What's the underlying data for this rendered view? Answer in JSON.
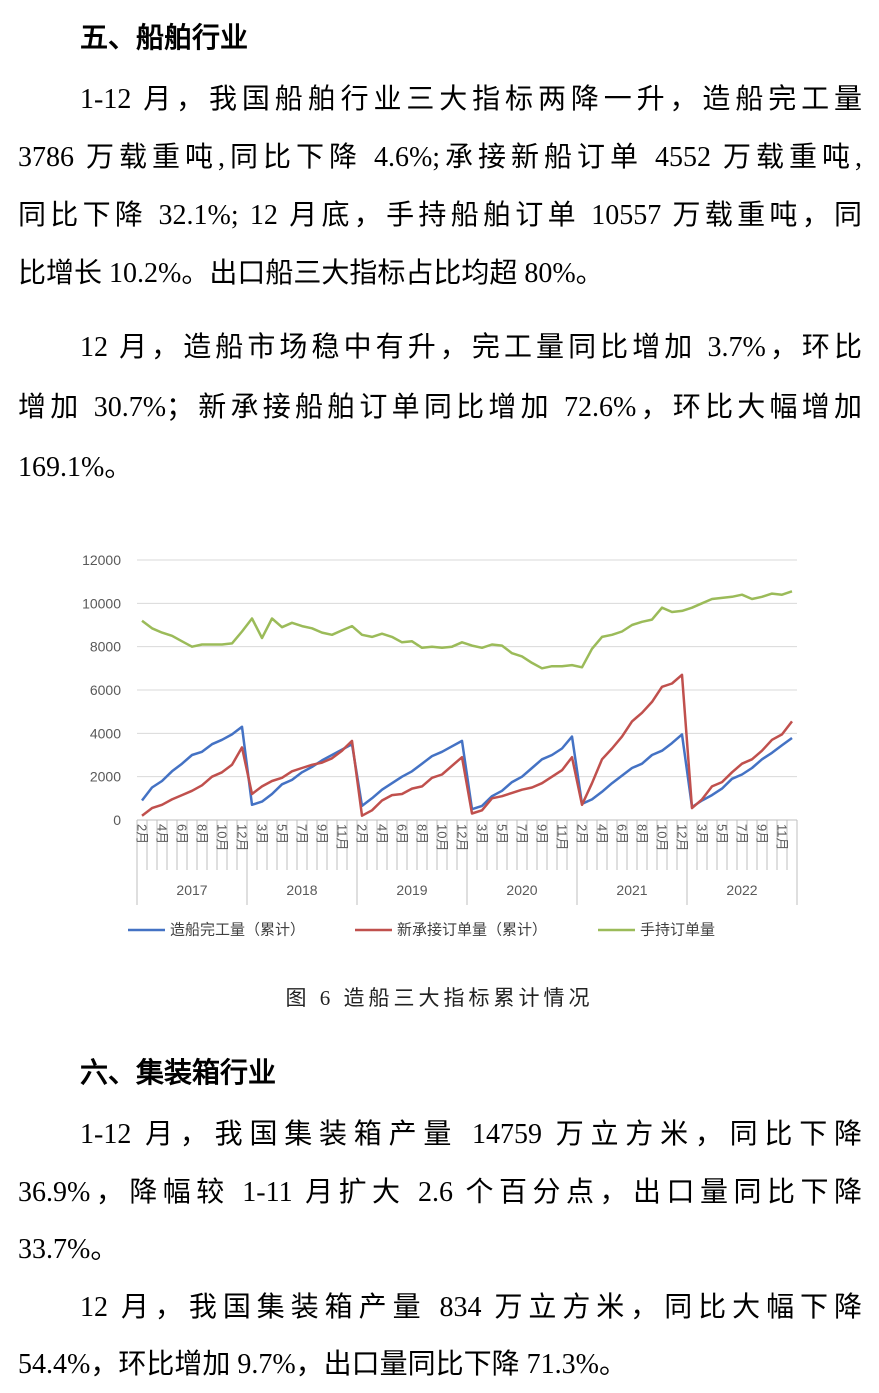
{
  "shipbuilding": {
    "heading": "五、船舶行业",
    "paragraphs": [
      [
        "1-12 月，我国船舶行业三大指标两降一升，造船完工量",
        "3786 万载重吨,同比下降 4.6%;承接新船订单 4552 万载重吨,",
        "同比下降 32.1%; 12 月底，手持船舶订单 10557 万载重吨，同",
        "比增长 10.2%。出口船三大指标占比均超 80%。"
      ],
      [
        "12 月，造船市场稳中有升，完工量同比增加 3.7%，环比",
        "增加 30.7%；新承接船舶订单同比增加 72.6%，环比大幅增加",
        "169.1%。"
      ]
    ],
    "figure_caption": "图 6 造船三大指标累计情况"
  },
  "containers": {
    "heading": "六、集装箱行业",
    "paragraphs": [
      [
        "1-12 月，我国集装箱产量 14759 万立方米，同比下降",
        "36.9%，降幅较 1-11 月扩大 2.6 个百分点，出口量同比下降",
        "33.7%。"
      ],
      [
        "12 月，我国集装箱产量 834 万立方米，同比大幅下降",
        "54.4%，环比增加 9.7%，出口量同比下降 71.3%。"
      ]
    ]
  },
  "chart_data": {
    "type": "line",
    "ylim": [
      0,
      12000
    ],
    "ytick_labels": [
      "12000",
      "10000",
      "8000",
      "6000",
      "4000",
      "2000",
      "0"
    ],
    "grid": true,
    "legend": "bottom",
    "x_groups": [
      {
        "label": "2017",
        "ticks": [
          "2月",
          "4月",
          "6月",
          "8月",
          "10月",
          "12月"
        ]
      },
      {
        "label": "2018",
        "ticks": [
          "3月",
          "5月",
          "7月",
          "9月",
          "11月"
        ]
      },
      {
        "label": "2019",
        "ticks": [
          "2月",
          "4月",
          "6月",
          "8月",
          "10月",
          "12月"
        ]
      },
      {
        "label": "2020",
        "ticks": [
          "3月",
          "5月",
          "7月",
          "9月",
          "11月"
        ]
      },
      {
        "label": "2021",
        "ticks": [
          "2月",
          "4月",
          "6月",
          "8月",
          "10月",
          "12月"
        ]
      },
      {
        "label": "2022",
        "ticks": [
          "3月",
          "5月",
          "7月",
          "9月",
          "11月"
        ]
      }
    ],
    "series": [
      {
        "name": "造船完工量（累计）",
        "color": "#4472c4",
        "values": [
          [
            900,
            1500,
            1800,
            2250,
            2600,
            3000,
            3150,
            3500,
            3700,
            3950,
            4300
          ],
          [
            700,
            850,
            1200,
            1650,
            1850,
            2200,
            2450,
            2750,
            3000,
            3250,
            3500
          ],
          [
            650,
            1000,
            1400,
            1700,
            2000,
            2250,
            2600,
            2950,
            3150,
            3400,
            3650
          ],
          [
            500,
            650,
            1100,
            1350,
            1750,
            2000,
            2400,
            2800,
            3000,
            3300,
            3850
          ],
          [
            750,
            950,
            1300,
            1700,
            2050,
            2400,
            2600,
            3000,
            3200,
            3550,
            3950
          ],
          [
            600,
            900,
            1150,
            1450,
            1900,
            2100,
            2400,
            2800,
            3100,
            3450,
            3786
          ]
        ]
      },
      {
        "name": "新承接订单量（累计）",
        "color": "#c0504d",
        "values": [
          [
            200,
            550,
            700,
            950,
            1150,
            1350,
            1600,
            2000,
            2200,
            2550,
            3350
          ],
          [
            1200,
            1550,
            1800,
            1950,
            2250,
            2400,
            2550,
            2650,
            2850,
            3200,
            3650
          ],
          [
            200,
            450,
            900,
            1150,
            1200,
            1450,
            1550,
            1950,
            2100,
            2500,
            2900
          ],
          [
            300,
            450,
            1000,
            1100,
            1250,
            1400,
            1500,
            1700,
            2000,
            2300,
            2900
          ],
          [
            700,
            1700,
            2800,
            3300,
            3850,
            4550,
            4950,
            5450,
            6150,
            6300,
            6700
          ],
          [
            550,
            950,
            1550,
            1750,
            2200,
            2600,
            2800,
            3200,
            3700,
            3950,
            4552
          ]
        ]
      },
      {
        "name": "手持订单量",
        "color": "#9bbb59",
        "values": [
          [
            9200,
            8850,
            8650,
            8500,
            8250,
            8000,
            8100,
            8100,
            8100,
            8150,
            8700
          ],
          [
            9300,
            8400,
            9300,
            8900,
            9100,
            8950,
            8850,
            8650,
            8550,
            8750,
            8950
          ],
          [
            8550,
            8450,
            8600,
            8450,
            8200,
            8250,
            7950,
            8000,
            7950,
            8000,
            8200
          ],
          [
            8050,
            7950,
            8100,
            8050,
            7700,
            7550,
            7250,
            7000,
            7100,
            7100,
            7150
          ],
          [
            7050,
            7900,
            8450,
            8550,
            8700,
            9000,
            9150,
            9250,
            9800,
            9600,
            9650
          ],
          [
            9800,
            10000,
            10200,
            10250,
            10300,
            10400,
            10200,
            10300,
            10450,
            10400,
            10557
          ]
        ]
      }
    ]
  }
}
